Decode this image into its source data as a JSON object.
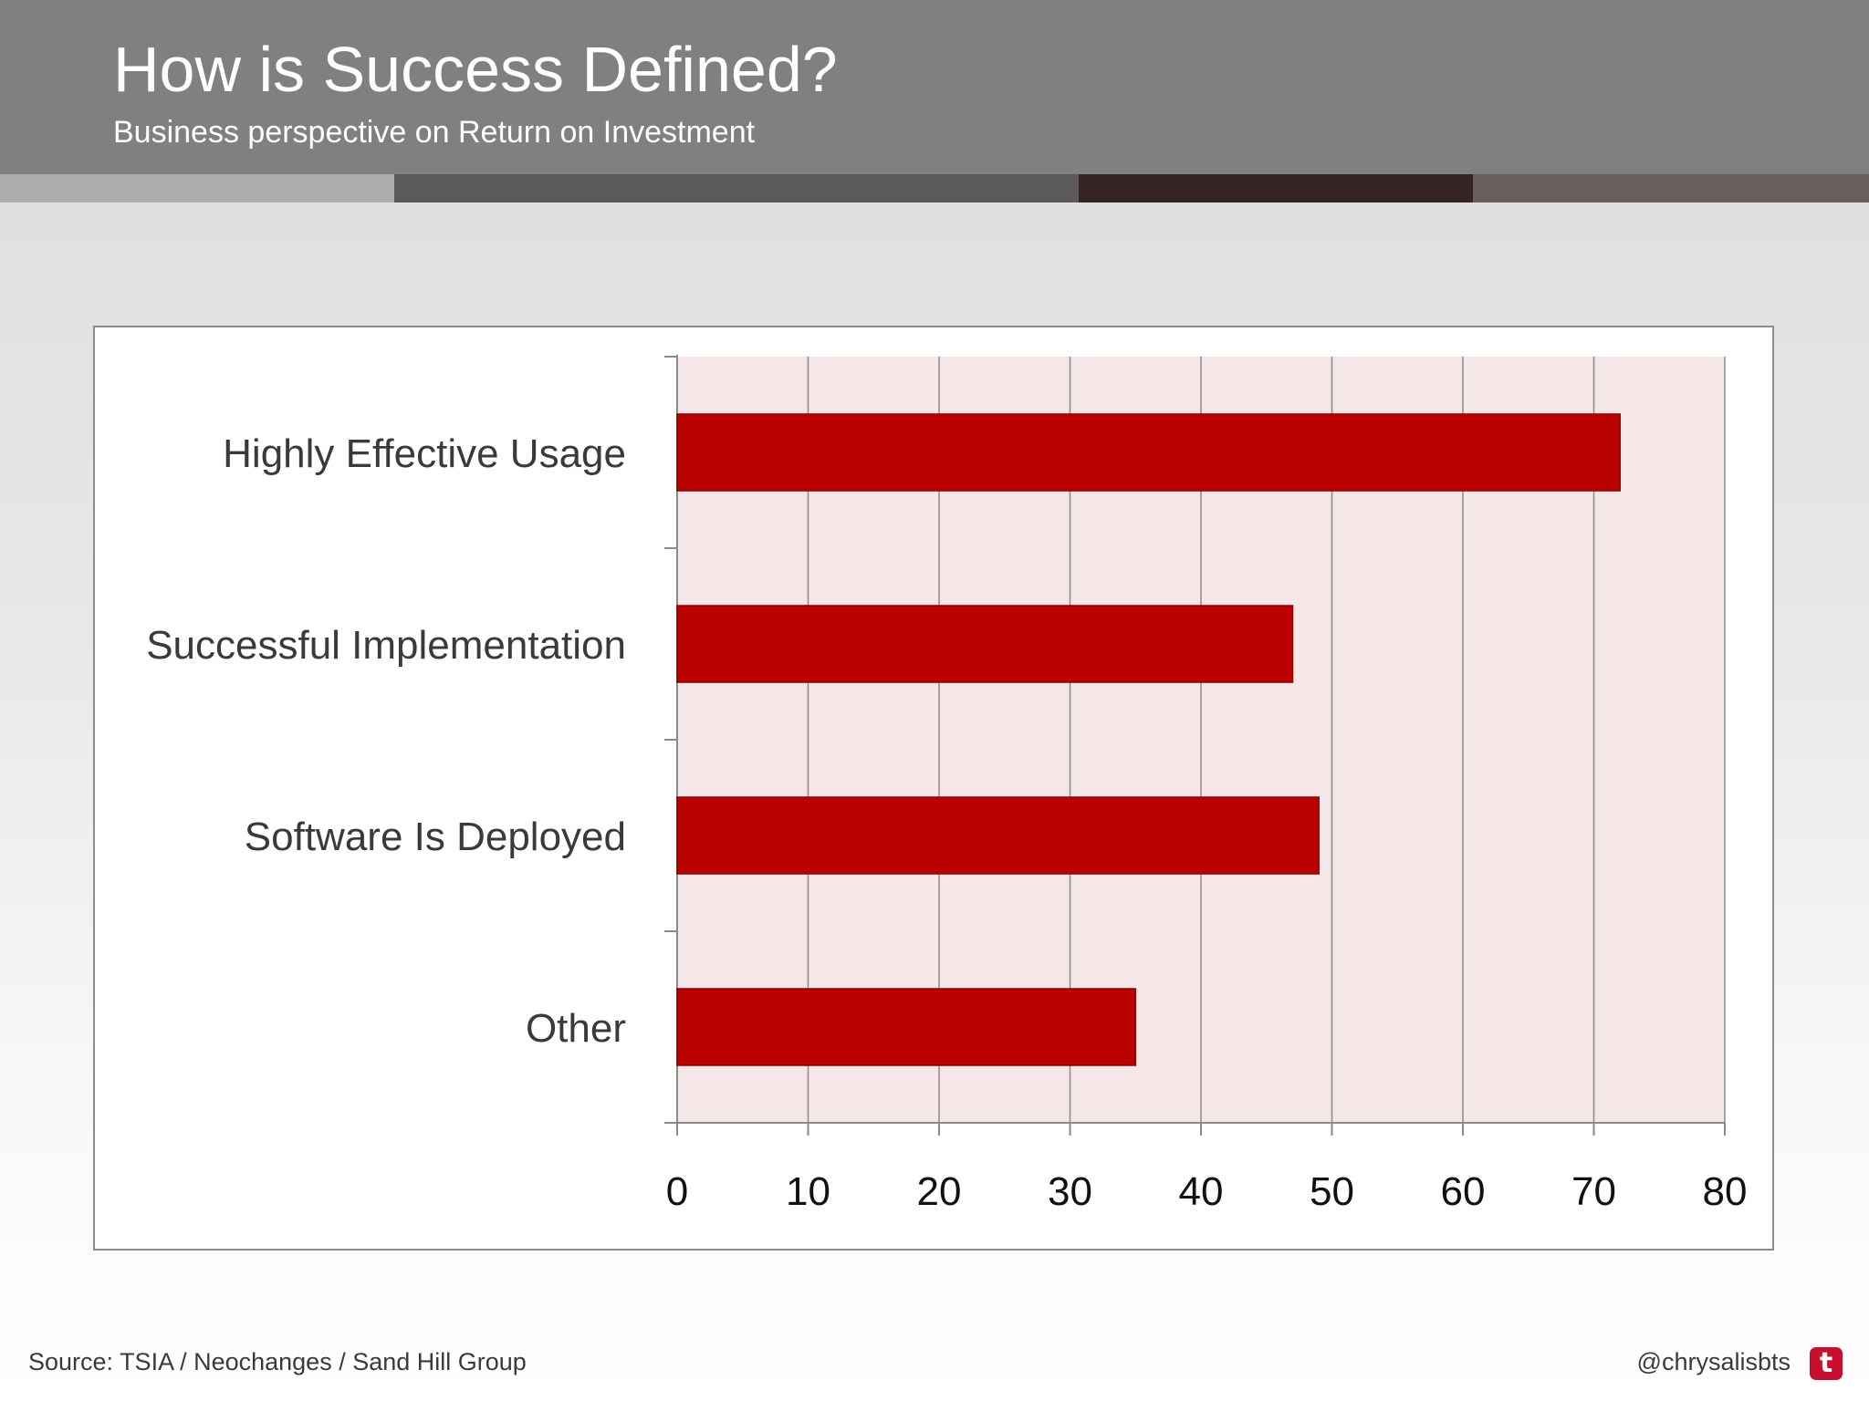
{
  "slide": {
    "title": "How is Success Defined?",
    "subtitle": "Business perspective on Return on Investment",
    "source": "Source: TSIA / Neochanges / Sand Hill Group",
    "handle": "@chrysalisbts",
    "social_icon": "twitter-icon",
    "header_color": "#808080",
    "stripe_colors": [
      "#aeadaf",
      "#5d5a5d",
      "#362425",
      "#6a5d5d"
    ]
  },
  "chart_data": {
    "type": "bar",
    "orientation": "horizontal",
    "categories": [
      "Highly Effective Usage",
      "Successful Implementation",
      "Software Is Deployed",
      "Other"
    ],
    "values": [
      72,
      47,
      49,
      35
    ],
    "xlim": [
      0,
      80
    ],
    "xticks": [
      0,
      10,
      20,
      30,
      40,
      50,
      60,
      70,
      80
    ],
    "grid": true,
    "legend": "none",
    "bar_color": "#bb0000",
    "plot_background": "#f5e6e7"
  }
}
